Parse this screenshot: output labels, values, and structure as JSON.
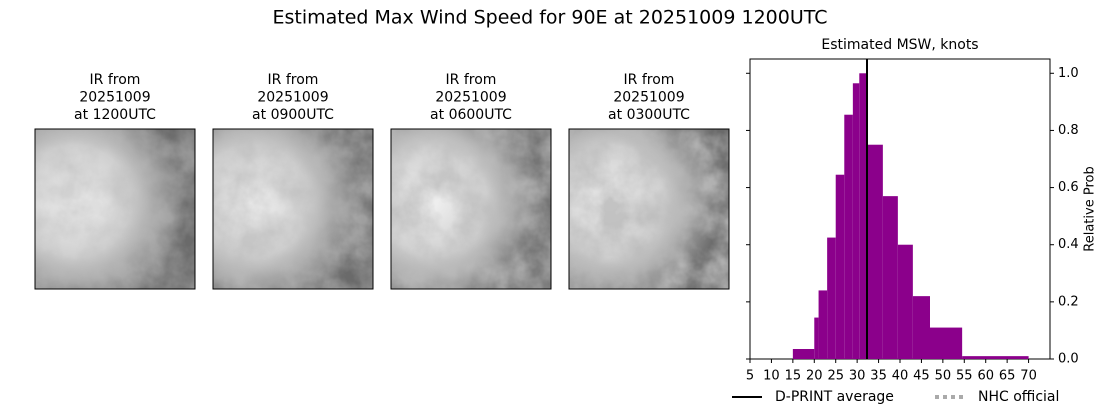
{
  "title": "Estimated Max Wind Speed for 90E at 20251009 1200UTC",
  "panels": [
    {
      "lines": [
        "IR from",
        "20251009",
        "at 1200UTC"
      ]
    },
    {
      "lines": [
        "IR from",
        "20251009",
        "at 0900UTC"
      ]
    },
    {
      "lines": [
        "IR from",
        "20251009",
        "at 0600UTC"
      ]
    },
    {
      "lines": [
        "IR from",
        "20251009",
        "at 0300UTC"
      ]
    }
  ],
  "chart_data": {
    "type": "histogram",
    "title": "Estimated MSW, knots",
    "y_label": "Relative Prob",
    "bins": [
      15,
      20,
      21,
      23,
      25,
      27,
      29,
      30.5,
      32.5,
      36,
      39.5,
      43,
      47,
      54.5,
      70
    ],
    "values": [
      0.035,
      0.145,
      0.24,
      0.425,
      0.645,
      0.855,
      0.965,
      1.0,
      0.75,
      0.57,
      0.4,
      0.22,
      0.11,
      0.01
    ],
    "color": "#8b008b",
    "xlim": [
      5,
      75
    ],
    "xticks": [
      5,
      10,
      15,
      20,
      25,
      30,
      35,
      40,
      45,
      50,
      55,
      60,
      65,
      70
    ],
    "ylim": [
      0,
      1.05
    ],
    "yticks": [
      {
        "value": 0,
        "label": "0.0"
      },
      0.2,
      0.4,
      0.6,
      0.8,
      {
        "value": 1,
        "label": "1.0"
      }
    ],
    "lines": [
      {
        "name": "D-PRINT average",
        "color": "#000000",
        "value": 32.3
      },
      {
        "name": "NHC official",
        "color": "#aaaaaa"
      }
    ]
  }
}
